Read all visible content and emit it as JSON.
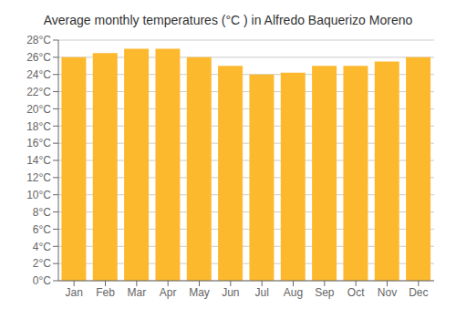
{
  "chart_data": {
    "type": "bar",
    "title": "Average monthly temperatures (°C ) in Alfredo Baquerizo Moreno",
    "categories": [
      "Jan",
      "Feb",
      "Mar",
      "Apr",
      "May",
      "Jun",
      "Jul",
      "Aug",
      "Sep",
      "Oct",
      "Nov",
      "Dec"
    ],
    "values": [
      26.0,
      26.5,
      27.0,
      27.0,
      26.0,
      25.0,
      24.0,
      24.2,
      25.0,
      25.0,
      25.5,
      26.0
    ],
    "color": "#FDB92E",
    "ylim": [
      0,
      28
    ],
    "yticks": [
      {
        "value": 0,
        "label": "0°C"
      },
      {
        "value": 2,
        "label": "2°C"
      },
      {
        "value": 4,
        "label": "4°C"
      },
      {
        "value": 6,
        "label": "6°C"
      },
      {
        "value": 8,
        "label": "8°C"
      },
      {
        "value": 10,
        "label": "10°C"
      },
      {
        "value": 12,
        "label": "12°C"
      },
      {
        "value": 14,
        "label": "14°C"
      },
      {
        "value": 16,
        "label": "16°C"
      },
      {
        "value": 18,
        "label": "18°C"
      },
      {
        "value": 20,
        "label": "20°C"
      },
      {
        "value": 22,
        "label": "22°C"
      },
      {
        "value": 24,
        "label": "24°C"
      },
      {
        "value": 26,
        "label": "26°C"
      },
      {
        "value": 28,
        "label": "28°C"
      }
    ],
    "grid": true
  }
}
